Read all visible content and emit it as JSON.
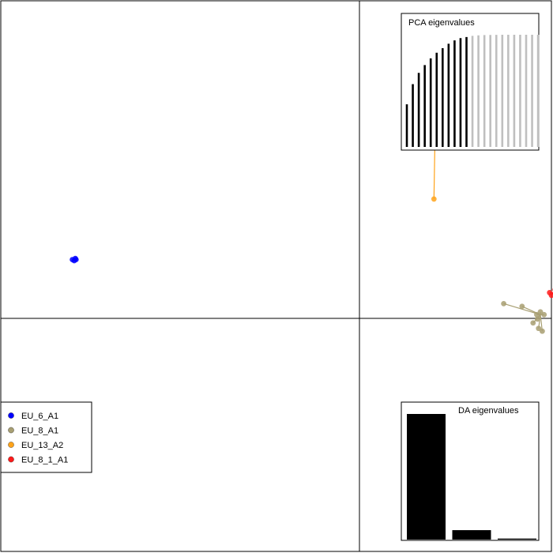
{
  "chart_data": {
    "type": "scatter",
    "title": "",
    "xlabel": "",
    "ylabel": "",
    "xlim": [
      -10,
      5
    ],
    "ylim": [
      -5,
      5
    ],
    "axes_lines": {
      "x": 0,
      "y": 0
    },
    "series": [
      {
        "name": "EU_6_A1",
        "color": "#0000FF",
        "centroid": [
          -8.0,
          0.3
        ],
        "points": [
          [
            -8.05,
            0.3
          ],
          [
            -7.95,
            0.3
          ],
          [
            -8.0,
            0.28
          ],
          [
            -7.97,
            0.32
          ]
        ]
      },
      {
        "name": "EU_8_A1",
        "color": "#A89F72",
        "centroid": [
          4.7,
          -0.7
        ],
        "points": [
          [
            3.7,
            -0.5
          ],
          [
            4.2,
            -0.55
          ],
          [
            4.6,
            -0.7
          ],
          [
            4.5,
            -0.85
          ],
          [
            4.7,
            -0.65
          ],
          [
            4.65,
            -0.95
          ],
          [
            4.75,
            -1.0
          ],
          [
            4.8,
            -0.7
          ],
          [
            4.62,
            -0.78
          ]
        ]
      },
      {
        "name": "EU_13_A2",
        "color": "#FFA31A",
        "centroid": [
          1.85,
          3.4
        ],
        "points": [
          [
            1.45,
            3.6
          ],
          [
            1.55,
            3.62
          ],
          [
            1.85,
            3.65
          ],
          [
            1.75,
            3.55
          ],
          [
            1.85,
            3.4
          ],
          [
            2.05,
            3.65
          ],
          [
            1.9,
            3.7
          ],
          [
            1.7,
            3.45
          ],
          [
            1.8,
            3.5
          ],
          [
            1.8,
            1.4
          ],
          [
            1.95,
            3.55
          ]
        ]
      },
      {
        "name": "EU_8_1_A1",
        "color": "#FF1A1A",
        "centroid": [
          5.05,
          -0.3
        ],
        "points": [
          [
            4.95,
            -0.3
          ],
          [
            5.1,
            -0.25
          ],
          [
            5.0,
            -0.35
          ],
          [
            5.5,
            -0.95
          ]
        ]
      }
    ],
    "legend": {
      "position": "bottom-left",
      "entries": [
        "EU_6_A1",
        "EU_8_A1",
        "EU_13_A2",
        "EU_8_1_A1"
      ]
    },
    "insets": [
      {
        "title": "PCA eigenvalues",
        "position": "top-right",
        "type": "bar",
        "values": [
          38,
          56,
          66,
          73,
          79,
          84,
          88,
          92,
          95,
          97,
          98,
          99,
          99.5,
          99.7,
          99.8,
          99.9,
          100,
          100,
          100,
          100,
          100,
          100,
          100
        ],
        "retained": 11,
        "retained_color": "#000000",
        "other_color": "#BFBFBF"
      },
      {
        "title": "DA eigenvalues",
        "position": "bottom-right",
        "type": "bar",
        "values": [
          100,
          7.5,
          0.8
        ],
        "color": "#000000"
      }
    ]
  }
}
